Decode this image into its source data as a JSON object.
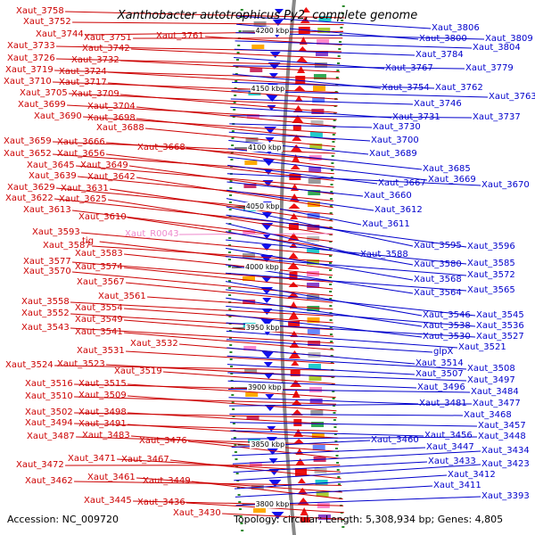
{
  "title": "Xanthobacter autotrophicus Py2, complete genome",
  "footer": {
    "accession": "Accession: NC_009720",
    "topology": "Topology: circular; Length: 5,308,934 bp; Genes: 4,805"
  },
  "colors": {
    "forward_strand": "#ee1111",
    "reverse_strand": "#1111ee",
    "left_label": "#cc0000",
    "right_label": "#0000cc",
    "rna_label": "#ee88cc",
    "backbone": "#888888",
    "gc_dots": "#2a8a2a"
  },
  "scale_marks": [
    "4200 kbp",
    "4150 kbp",
    "4100 kbp",
    "4050 kbp",
    "4000 kbp",
    "3950 kbp",
    "3900 kbp",
    "3850 kbp",
    "3800 kbp"
  ],
  "left_labels": [
    "Xaut_3758",
    "Xaut_3752",
    "Xaut_3744",
    "Xaut_3751",
    "Xaut_3761",
    "Xaut_3733",
    "Xaut_3742",
    "Xaut_3726",
    "Xaut_3732",
    "Xaut_3719",
    "Xaut_3724",
    "Xaut_3710",
    "Xaut_3717",
    "Xaut_3705",
    "Xaut_3709",
    "Xaut_3699",
    "Xaut_3704",
    "Xaut_3690",
    "Xaut_3698",
    "Xaut_3688",
    "Xaut_3659",
    "Xaut_3666",
    "Xaut_3668",
    "Xaut_3652",
    "Xaut_3656",
    "Xaut_3645",
    "Xaut_3649",
    "Xaut_3639",
    "Xaut_3642",
    "Xaut_3629",
    "Xaut_3631",
    "Xaut_3622",
    "Xaut_3625",
    "Xaut_3613",
    "Xaut_3610",
    "Xaut_3593",
    "Xaut_3587",
    "tig",
    "Xaut_3583",
    "Xaut_3577",
    "Xaut_3574",
    "Xaut_3570",
    "Xaut_3567",
    "Xaut_3561",
    "Xaut_3558",
    "Xaut_3554",
    "Xaut_3552",
    "Xaut_3549",
    "Xaut_3543",
    "Xaut_3541",
    "Xaut_3532",
    "Xaut_3531",
    "Xaut_3524",
    "Xaut_3523",
    "Xaut_3519",
    "Xaut_3516",
    "Xaut_3515",
    "Xaut_3510",
    "Xaut_3509",
    "Xaut_3502",
    "Xaut_3498",
    "Xaut_3494",
    "Xaut_3491",
    "Xaut_3487",
    "Xaut_3483",
    "Xaut_3476",
    "Xaut_3472",
    "Xaut_3471",
    "Xaut_3467",
    "Xaut_3462",
    "Xaut_3461",
    "Xaut_3449",
    "Xaut_3445",
    "Xaut_3436",
    "Xaut_3430"
  ],
  "rna_label": "Xaut_R0043",
  "right_labels": [
    "Xaut_3806",
    "Xaut_3800",
    "Xaut_3809",
    "Xaut_3804",
    "Xaut_3784",
    "Xaut_3767",
    "Xaut_3779",
    "Xaut_3754",
    "Xaut_3762",
    "Xaut_3763",
    "Xaut_3746",
    "Xaut_3731",
    "Xaut_3737",
    "Xaut_3730",
    "Xaut_3700",
    "Xaut_3689",
    "Xaut_3685",
    "Xaut_3669",
    "Xaut_3667",
    "Xaut_3670",
    "Xaut_3660",
    "Xaut_3612",
    "Xaut_3611",
    "Xaut_3595",
    "Xaut_3596",
    "Xaut_3588",
    "Xaut_3580",
    "Xaut_3585",
    "Xaut_3568",
    "Xaut_3572",
    "Xaut_3564",
    "Xaut_3565",
    "Xaut_3546",
    "Xaut_3545",
    "Xaut_3538",
    "Xaut_3536",
    "Xaut_3530",
    "Xaut_3527",
    "Xaut_3521",
    "glpX",
    "Xaut_3514",
    "Xaut_3508",
    "Xaut_3507",
    "Xaut_3497",
    "Xaut_3496",
    "Xaut_3484",
    "Xaut_3481",
    "Xaut_3477",
    "Xaut_3468",
    "Xaut_3457",
    "Xaut_3456",
    "Xaut_3448",
    "Xaut_3460",
    "Xaut_3447",
    "Xaut_3434",
    "Xaut_3433",
    "Xaut_3423",
    "Xaut_3412",
    "Xaut_3411",
    "Xaut_3393"
  ]
}
